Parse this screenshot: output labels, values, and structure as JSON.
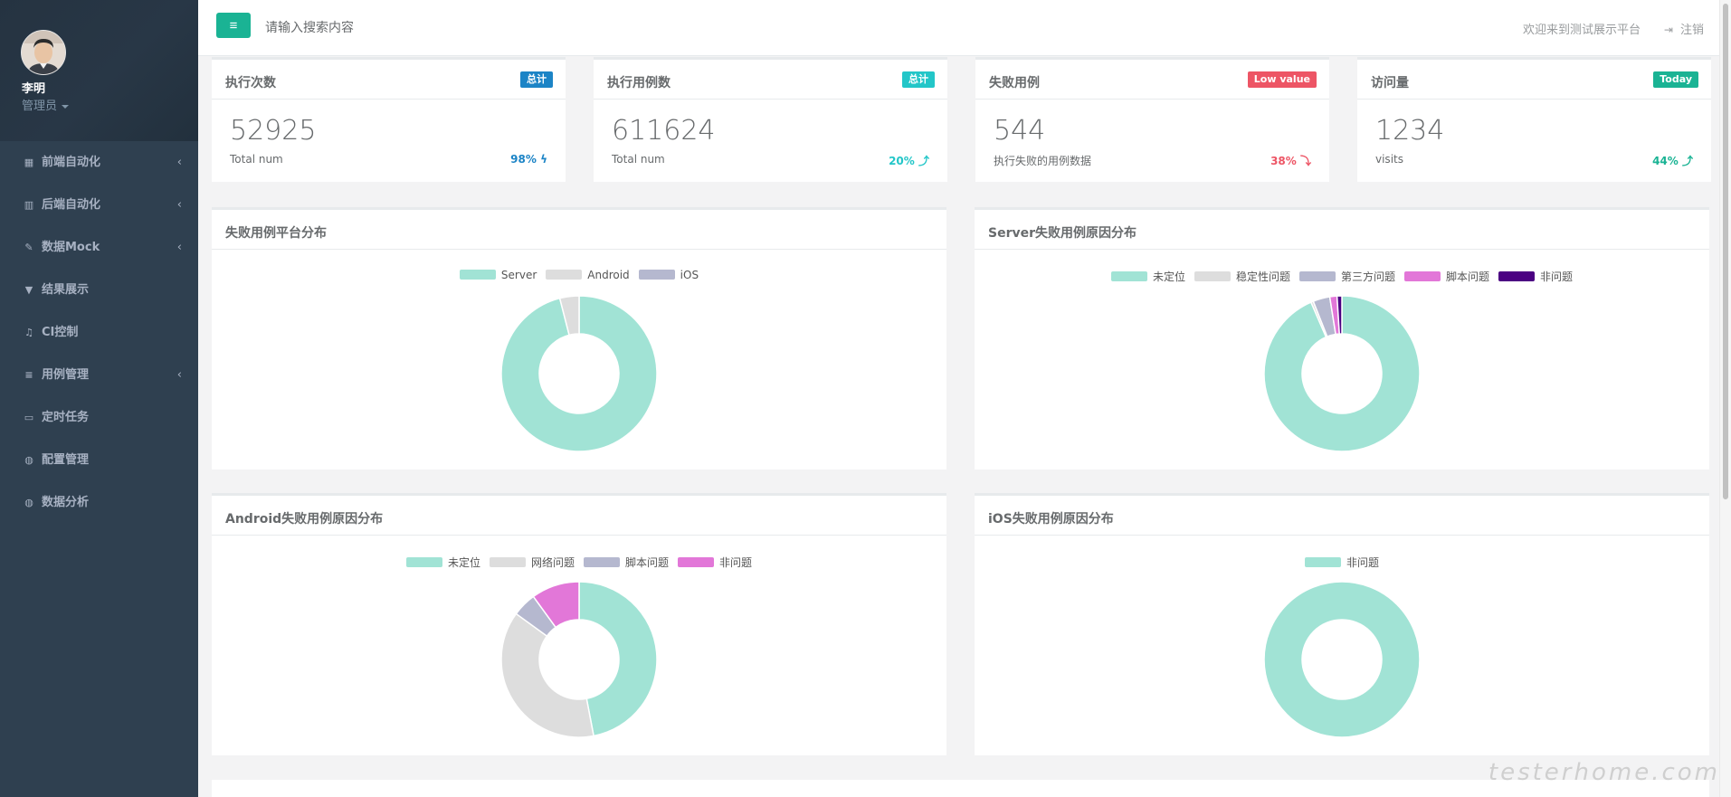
{
  "user": {
    "name": "李明",
    "role": "管理员"
  },
  "sidebar": {
    "items": [
      {
        "label": "前端自动化",
        "icon": "grid-icon",
        "glyph": "▦",
        "arrow": true
      },
      {
        "label": "后端自动化",
        "icon": "bar-chart-icon",
        "glyph": "▥",
        "arrow": true
      },
      {
        "label": "数据Mock",
        "icon": "edit-icon",
        "glyph": "✎",
        "arrow": true
      },
      {
        "label": "结果展示",
        "icon": "filter-icon",
        "glyph": "▼",
        "arrow": false
      },
      {
        "label": "CI控制",
        "icon": "music-icon",
        "glyph": "♫",
        "arrow": false
      },
      {
        "label": "用例管理",
        "icon": "database-icon",
        "glyph": "≡",
        "arrow": true
      },
      {
        "label": "定时任务",
        "icon": "desktop-icon",
        "glyph": "▭",
        "arrow": false
      },
      {
        "label": "配置管理",
        "icon": "globe-icon",
        "glyph": "◍",
        "arrow": false
      },
      {
        "label": "数据分析",
        "icon": "globe-icon",
        "glyph": "◍",
        "arrow": false
      }
    ]
  },
  "topbar": {
    "search_placeholder": "请输入搜索内容",
    "welcome": "欢迎来到测试展示平台",
    "logout": "注销",
    "menu_glyph": "≡",
    "logout_glyph": "⇥"
  },
  "stats": [
    {
      "title": "执行次数",
      "badge": "总计",
      "badge_color": "#1c84c6",
      "value": "52925",
      "sub": "Total num",
      "change": "98%",
      "change_icon": "ϟ",
      "change_color": "#1c84c6"
    },
    {
      "title": "执行用例数",
      "badge": "总计",
      "badge_color": "#23c6c8",
      "value": "611624",
      "sub": "Total num",
      "change": "20%",
      "change_icon": "⤴",
      "change_color": "#23c6c8"
    },
    {
      "title": "失败用例",
      "badge": "Low value",
      "badge_color": "#ed5565",
      "value": "544",
      "sub": "执行失败的用例数据",
      "change": "38%",
      "change_icon": "⤵",
      "change_color": "#ed5565"
    },
    {
      "title": "访问量",
      "badge": "Today",
      "badge_color": "#1ab394",
      "value": "1234",
      "sub": "visits",
      "change": "44%",
      "change_icon": "⤴",
      "change_color": "#1ab394"
    }
  ],
  "charts": [
    {
      "title": "失败用例平台分布"
    },
    {
      "title": "Server失败用例原因分布"
    },
    {
      "title": "Android失败用例原因分布"
    },
    {
      "title": "iOS失败用例原因分布"
    }
  ],
  "chart_data": [
    {
      "type": "pie",
      "title": "失败用例平台分布",
      "legend": "top",
      "categories": [
        "Server",
        "Android",
        "iOS"
      ],
      "values": [
        96,
        4,
        0
      ],
      "colors": [
        "#a1e3d5",
        "#dddddd",
        "#b5b8cf"
      ]
    },
    {
      "type": "pie",
      "title": "Server失败用例原因分布",
      "legend": "top",
      "categories": [
        "未定位",
        "稳定性问题",
        "第三方问题",
        "脚本问题",
        "非问题"
      ],
      "values": [
        93.5,
        0.5,
        3.5,
        1.5,
        1
      ],
      "colors": [
        "#a1e3d5",
        "#dddddd",
        "#b5b8cf",
        "#e277d8",
        "#4b0082"
      ]
    },
    {
      "type": "pie",
      "title": "Android失败用例原因分布",
      "legend": "top",
      "categories": [
        "未定位",
        "网络问题",
        "脚本问题",
        "非问题"
      ],
      "values": [
        47,
        38,
        5,
        10
      ],
      "colors": [
        "#a1e3d5",
        "#dddddd",
        "#b5b8cf",
        "#e277d8"
      ]
    },
    {
      "type": "pie",
      "title": "iOS失败用例原因分布",
      "legend": "top",
      "categories": [
        "非问题"
      ],
      "values": [
        100
      ],
      "colors": [
        "#a1e3d5"
      ]
    }
  ],
  "watermark": "testerhome.com"
}
